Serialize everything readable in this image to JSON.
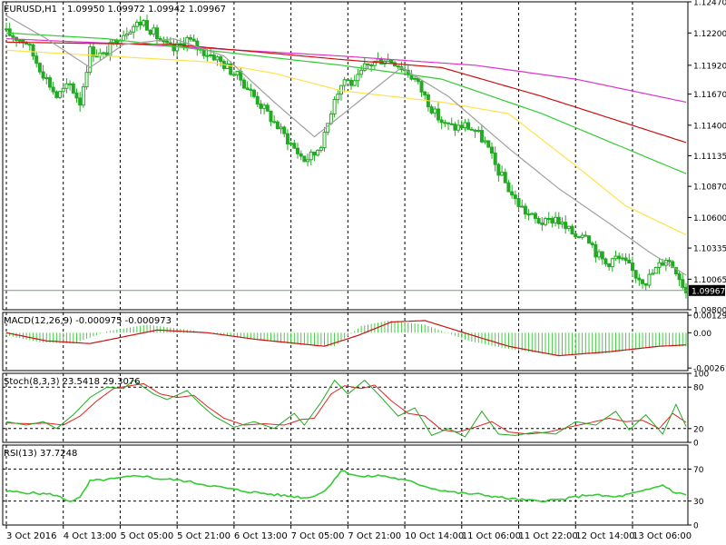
{
  "header": {
    "symbol": "EURUSD,H1",
    "ohlc": "1.09950 1.09972 1.09942 1.09967"
  },
  "colors": {
    "bull": "#22aa22",
    "bear": "#22aa22",
    "ma_gray": "#a0a0a0",
    "ma_yellow": "#ffe14d",
    "ma_green": "#33cc33",
    "ma_red": "#cc1111",
    "ma_magenta": "#dd33cc",
    "macd_hist": "#44cc44",
    "macd_signal": "#cc1111",
    "stoch_main": "#22aa22",
    "stoch_signal": "#dd2222",
    "rsi": "#33cc33",
    "grid": "#000000"
  },
  "chart_data": [
    {
      "type": "candlestick",
      "name": "price",
      "ylim": [
        1.098,
        1.1247
      ],
      "y_ticks": [
        "1.12470",
        "1.12200",
        "1.11920",
        "1.11670",
        "1.11400",
        "1.11135",
        "1.10870",
        "1.10600",
        "1.10335",
        "1.10065",
        "1.09800"
      ],
      "y_tick_values": [
        1.1247,
        1.122,
        1.1192,
        1.1167,
        1.114,
        1.11135,
        1.1087,
        1.106,
        1.10335,
        1.10065,
        1.098
      ],
      "last_price": "1.09967",
      "last_price_value": 1.09967,
      "x_labels": [
        "3 Oct 2016",
        "4 Oct 13:00",
        "5 Oct 05:00",
        "5 Oct 21:00",
        "6 Oct 13:00",
        "7 Oct 05:00",
        "7 Oct 21:00",
        "10 Oct 14:00",
        "11 Oct 06:00",
        "11 Oct 22:00",
        "12 Oct 14:00",
        "13 Oct 06:00"
      ],
      "path_knots": [
        [
          0,
          1.122
        ],
        [
          6,
          1.1212
        ],
        [
          9,
          1.1195
        ],
        [
          12,
          1.118
        ],
        [
          15,
          1.1165
        ],
        [
          19,
          1.1175
        ],
        [
          22,
          1.116
        ],
        [
          25,
          1.1205
        ],
        [
          29,
          1.12
        ],
        [
          33,
          1.1215
        ],
        [
          37,
          1.1225
        ],
        [
          41,
          1.123
        ],
        [
          44,
          1.122
        ],
        [
          47,
          1.121
        ],
        [
          50,
          1.1205
        ],
        [
          54,
          1.1215
        ],
        [
          58,
          1.1205
        ],
        [
          62,
          1.12
        ],
        [
          66,
          1.119
        ],
        [
          70,
          1.118
        ],
        [
          74,
          1.1165
        ],
        [
          78,
          1.115
        ],
        [
          82,
          1.1135
        ],
        [
          86,
          1.112
        ],
        [
          89,
          1.111
        ],
        [
          92,
          1.1115
        ],
        [
          95,
          1.113
        ],
        [
          98,
          1.1165
        ],
        [
          101,
          1.118
        ],
        [
          104,
          1.1175
        ],
        [
          107,
          1.119
        ],
        [
          110,
          1.1195
        ],
        [
          113,
          1.1198
        ],
        [
          116,
          1.1195
        ],
        [
          119,
          1.1188
        ],
        [
          122,
          1.118
        ],
        [
          125,
          1.1165
        ],
        [
          128,
          1.115
        ],
        [
          131,
          1.114
        ],
        [
          134,
          1.1138
        ],
        [
          137,
          1.114
        ],
        [
          140,
          1.1135
        ],
        [
          143,
          1.1125
        ],
        [
          146,
          1.1105
        ],
        [
          149,
          1.109
        ],
        [
          152,
          1.1075
        ],
        [
          155,
          1.1065
        ],
        [
          158,
          1.1058
        ],
        [
          161,
          1.1055
        ],
        [
          164,
          1.106
        ],
        [
          167,
          1.105
        ],
        [
          170,
          1.1045
        ],
        [
          173,
          1.1048
        ],
        [
          176,
          1.103
        ],
        [
          179,
          1.102
        ],
        [
          182,
          1.1025
        ],
        [
          185,
          1.102
        ],
        [
          188,
          1.101
        ],
        [
          191,
          1.1005
        ],
        [
          194,
          1.1015
        ],
        [
          197,
          1.1025
        ],
        [
          200,
          1.1015
        ],
        [
          203,
          1.0996
        ]
      ],
      "bars": 204,
      "moving_averages": [
        {
          "color_key": "ma_magenta",
          "knots": [
            [
              0,
              1.1215
            ],
            [
              40,
              1.121
            ],
            [
              100,
              1.12
            ],
            [
              140,
              1.1192
            ],
            [
              170,
              1.118
            ],
            [
              203,
              1.116
            ]
          ]
        },
        {
          "color_key": "ma_red",
          "knots": [
            [
              0,
              1.1212
            ],
            [
              50,
              1.121
            ],
            [
              100,
              1.1197
            ],
            [
              130,
              1.119
            ],
            [
              160,
              1.1165
            ],
            [
              203,
              1.1125
            ]
          ]
        },
        {
          "color_key": "ma_green",
          "knots": [
            [
              0,
              1.122
            ],
            [
              30,
              1.1215
            ],
            [
              60,
              1.1205
            ],
            [
              100,
              1.1192
            ],
            [
              130,
              1.118
            ],
            [
              160,
              1.115
            ],
            [
              203,
              1.1098
            ]
          ]
        },
        {
          "color_key": "ma_yellow",
          "knots": [
            [
              0,
              1.1205
            ],
            [
              30,
              1.12
            ],
            [
              60,
              1.1195
            ],
            [
              80,
              1.1185
            ],
            [
              100,
              1.117
            ],
            [
              130,
              1.116
            ],
            [
              150,
              1.115
            ],
            [
              170,
              1.1105
            ],
            [
              185,
              1.107
            ],
            [
              203,
              1.1045
            ]
          ]
        },
        {
          "color_key": "ma_gray",
          "knots": [
            [
              0,
              1.1235
            ],
            [
              12,
              1.1215
            ],
            [
              25,
              1.119
            ],
            [
              35,
              1.121
            ],
            [
              50,
              1.1215
            ],
            [
              65,
              1.12
            ],
            [
              80,
              1.116
            ],
            [
              92,
              1.113
            ],
            [
              105,
              1.116
            ],
            [
              118,
              1.119
            ],
            [
              132,
              1.1165
            ],
            [
              150,
              1.112
            ],
            [
              165,
              1.1085
            ],
            [
              180,
              1.1055
            ],
            [
              192,
              1.103
            ],
            [
              203,
              1.101
            ]
          ]
        }
      ]
    },
    {
      "type": "histogram_line",
      "name": "macd",
      "label": "MACD(12,26,9) -0.000975 -0.000973",
      "ylim": [
        -0.0028,
        0.0015
      ],
      "y_ticks": [
        "0.001292",
        "0.00",
        "-0.00261"
      ],
      "y_tick_values": [
        0.001292,
        0.0,
        -0.00261
      ],
      "hist_knots": [
        [
          0,
          -0.0002
        ],
        [
          10,
          -0.0007
        ],
        [
          20,
          -0.0008
        ],
        [
          30,
          0.0001
        ],
        [
          42,
          0.0006
        ],
        [
          55,
          0.0002
        ],
        [
          70,
          -0.0004
        ],
        [
          88,
          -0.0009
        ],
        [
          98,
          -0.001
        ],
        [
          106,
          0.0005
        ],
        [
          114,
          0.0009
        ],
        [
          125,
          0.0006
        ],
        [
          138,
          -0.0006
        ],
        [
          150,
          -0.0012
        ],
        [
          165,
          -0.0017
        ],
        [
          180,
          -0.0015
        ],
        [
          195,
          -0.001
        ],
        [
          203,
          -0.001
        ]
      ],
      "signal_knots": [
        [
          0,
          0.0
        ],
        [
          12,
          -0.0006
        ],
        [
          25,
          -0.0008
        ],
        [
          35,
          -0.0003
        ],
        [
          45,
          0.0002
        ],
        [
          60,
          0.0
        ],
        [
          75,
          -0.0005
        ],
        [
          95,
          -0.001
        ],
        [
          105,
          -0.0002
        ],
        [
          115,
          0.0008
        ],
        [
          125,
          0.0009
        ],
        [
          138,
          -0.0001
        ],
        [
          150,
          -0.001
        ],
        [
          165,
          -0.0017
        ],
        [
          180,
          -0.0014
        ],
        [
          195,
          -0.001
        ],
        [
          203,
          -0.0009
        ]
      ]
    },
    {
      "type": "line",
      "name": "stochastic",
      "label": "Stoch(8,3,3) 23.5418 29.3076",
      "ylim": [
        0,
        100
      ],
      "y_ticks": [
        "100",
        "80",
        "20",
        "0"
      ],
      "y_tick_values": [
        100,
        80,
        20,
        0
      ],
      "main_knots": [
        [
          0,
          30
        ],
        [
          6,
          25
        ],
        [
          11,
          30
        ],
        [
          15,
          20
        ],
        [
          20,
          40
        ],
        [
          25,
          65
        ],
        [
          30,
          80
        ],
        [
          35,
          78
        ],
        [
          38,
          90
        ],
        [
          44,
          70
        ],
        [
          48,
          62
        ],
        [
          54,
          75
        ],
        [
          58,
          55
        ],
        [
          62,
          38
        ],
        [
          68,
          22
        ],
        [
          74,
          30
        ],
        [
          80,
          20
        ],
        [
          86,
          42
        ],
        [
          89,
          25
        ],
        [
          94,
          58
        ],
        [
          98,
          90
        ],
        [
          102,
          70
        ],
        [
          107,
          90
        ],
        [
          112,
          65
        ],
        [
          117,
          38
        ],
        [
          122,
          50
        ],
        [
          127,
          10
        ],
        [
          132,
          20
        ],
        [
          137,
          8
        ],
        [
          142,
          45
        ],
        [
          147,
          12
        ],
        [
          152,
          10
        ],
        [
          158,
          15
        ],
        [
          164,
          12
        ],
        [
          170,
          30
        ],
        [
          176,
          25
        ],
        [
          182,
          45
        ],
        [
          186,
          18
        ],
        [
          191,
          40
        ],
        [
          196,
          12
        ],
        [
          200,
          55
        ],
        [
          203,
          23
        ]
      ],
      "signal_knots": [
        [
          0,
          28
        ],
        [
          7,
          27
        ],
        [
          12,
          28
        ],
        [
          17,
          25
        ],
        [
          22,
          38
        ],
        [
          27,
          60
        ],
        [
          32,
          78
        ],
        [
          37,
          82
        ],
        [
          41,
          85
        ],
        [
          46,
          70
        ],
        [
          51,
          65
        ],
        [
          56,
          68
        ],
        [
          60,
          52
        ],
        [
          65,
          35
        ],
        [
          71,
          25
        ],
        [
          77,
          27
        ],
        [
          83,
          25
        ],
        [
          88,
          33
        ],
        [
          92,
          35
        ],
        [
          97,
          70
        ],
        [
          101,
          82
        ],
        [
          106,
          78
        ],
        [
          110,
          83
        ],
        [
          115,
          60
        ],
        [
          120,
          42
        ],
        [
          125,
          38
        ],
        [
          130,
          18
        ],
        [
          135,
          15
        ],
        [
          140,
          22
        ],
        [
          145,
          30
        ],
        [
          150,
          15
        ],
        [
          156,
          12
        ],
        [
          162,
          15
        ],
        [
          168,
          22
        ],
        [
          174,
          28
        ],
        [
          180,
          35
        ],
        [
          185,
          30
        ],
        [
          190,
          32
        ],
        [
          195,
          20
        ],
        [
          199,
          42
        ],
        [
          203,
          29
        ]
      ]
    },
    {
      "type": "line",
      "name": "rsi",
      "label": "RSI(13) 37.7248",
      "ylim": [
        0,
        100
      ],
      "y_ticks": [
        "70",
        "30",
        "0"
      ],
      "y_tick_values": [
        70,
        30,
        0
      ],
      "knots": [
        [
          0,
          42
        ],
        [
          8,
          40
        ],
        [
          14,
          38
        ],
        [
          19,
          30
        ],
        [
          22,
          34
        ],
        [
          25,
          55
        ],
        [
          33,
          58
        ],
        [
          40,
          62
        ],
        [
          45,
          58
        ],
        [
          52,
          56
        ],
        [
          60,
          50
        ],
        [
          70,
          43
        ],
        [
          80,
          38
        ],
        [
          90,
          34
        ],
        [
          95,
          42
        ],
        [
          100,
          68
        ],
        [
          106,
          60
        ],
        [
          112,
          62
        ],
        [
          120,
          55
        ],
        [
          128,
          45
        ],
        [
          135,
          40
        ],
        [
          142,
          38
        ],
        [
          150,
          33
        ],
        [
          158,
          30
        ],
        [
          166,
          32
        ],
        [
          174,
          38
        ],
        [
          182,
          35
        ],
        [
          190,
          42
        ],
        [
          196,
          50
        ],
        [
          200,
          40
        ],
        [
          203,
          38
        ]
      ]
    }
  ]
}
